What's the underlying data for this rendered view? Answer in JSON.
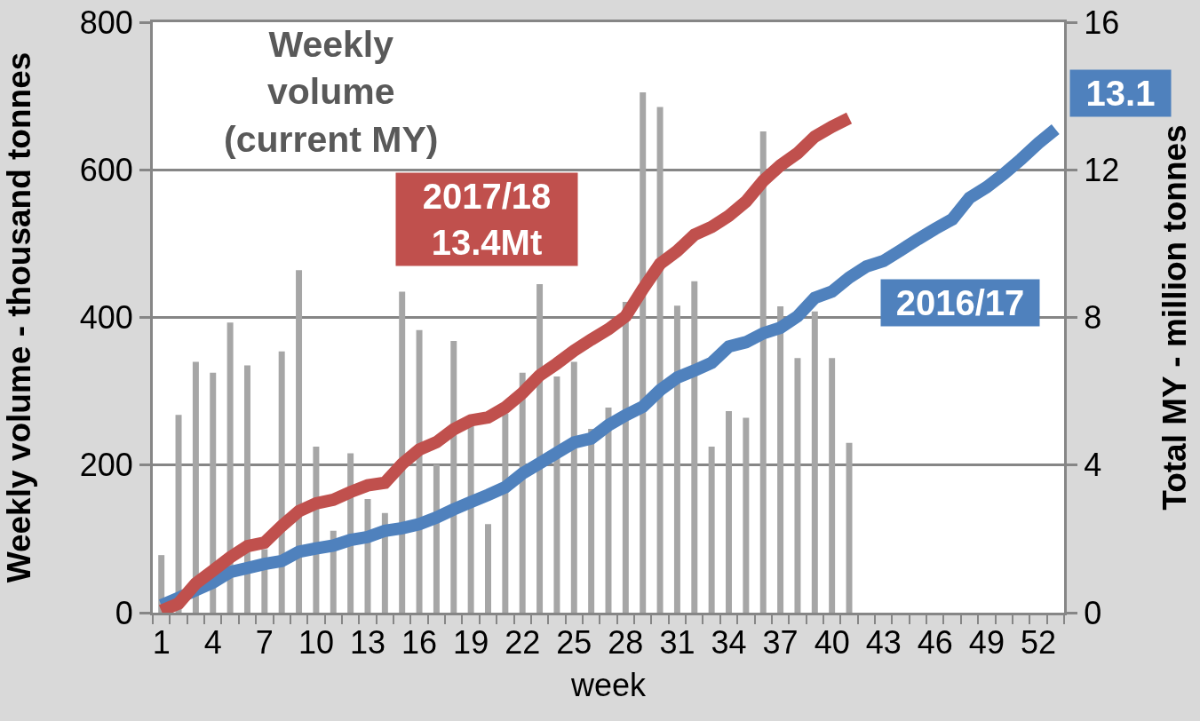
{
  "chart_data": {
    "type": "bar",
    "xlabel": "week",
    "ylabel": "Weekly volume - thousand tonnes",
    "y2label": "Total MY - million tonnes",
    "annotations": [
      "Weekly\nvolume\n(current MY)"
    ],
    "categories": [
      "1",
      null,
      null,
      "4",
      null,
      null,
      "7",
      null,
      null,
      "10",
      null,
      null,
      "13",
      null,
      null,
      "16",
      null,
      null,
      "19",
      null,
      null,
      "22",
      null,
      null,
      "25",
      null,
      null,
      "28",
      null,
      null,
      "31",
      null,
      null,
      "34",
      null,
      null,
      "37",
      null,
      null,
      "40",
      null,
      null,
      "43",
      null,
      null,
      "46",
      null,
      null,
      "49",
      null,
      null,
      "52",
      null
    ],
    "ylim": [
      0,
      800
    ],
    "yticks": [
      0,
      200,
      400,
      600,
      800
    ],
    "y2lim": [
      0,
      16
    ],
    "y2ticks": [
      0,
      4,
      8,
      12,
      16
    ],
    "grid": "y",
    "series": [
      {
        "color": "#a6a6a6",
        "values": [
          78,
          268,
          340,
          325,
          393,
          335,
          86,
          354,
          464,
          225,
          111,
          216,
          154,
          135,
          435,
          383,
          201,
          368,
          255,
          120,
          270,
          325,
          445,
          320,
          340,
          249,
          278,
          421,
          705,
          685,
          416,
          449,
          225,
          273,
          264,
          652,
          415,
          345,
          408,
          345,
          230,
          null,
          null,
          null,
          null,
          null,
          null,
          null,
          null,
          null,
          null,
          null,
          null
        ]
      },
      {
        "type": "line",
        "axis": "y2",
        "name": "2016/17",
        "color": "#4f81bd",
        "values": [
          0.2,
          0.4,
          0.61,
          0.82,
          1.1,
          1.21,
          1.32,
          1.4,
          1.65,
          1.74,
          1.82,
          1.97,
          2.05,
          2.22,
          2.29,
          2.4,
          2.58,
          2.8,
          3.0,
          3.19,
          3.4,
          3.77,
          4.05,
          4.33,
          4.61,
          4.72,
          5.08,
          5.35,
          5.58,
          6.03,
          6.37,
          6.56,
          6.77,
          7.21,
          7.33,
          7.57,
          7.72,
          8.03,
          8.53,
          8.7,
          9.08,
          9.38,
          9.53,
          9.82,
          10.12,
          10.4,
          10.66,
          11.24,
          11.53,
          11.89,
          12.29,
          12.72,
          13.1
        ],
        "value_labels": [
          null,
          null,
          null,
          null,
          null,
          null,
          null,
          null,
          null,
          null,
          null,
          null,
          null,
          null,
          null,
          null,
          null,
          null,
          null,
          null,
          null,
          null,
          null,
          null,
          null,
          null,
          null,
          null,
          null,
          null,
          null,
          null,
          null,
          null,
          null,
          null,
          null,
          null,
          null,
          null,
          null,
          null,
          null,
          null,
          null,
          null,
          null,
          null,
          null,
          null,
          null,
          null,
          "13.1"
        ]
      },
      {
        "type": "line",
        "axis": "y2",
        "name": "2017/18\n13.4Mt",
        "color": "#c0504d",
        "values": [
          0.05,
          0.25,
          0.79,
          1.14,
          1.5,
          1.8,
          1.9,
          2.35,
          2.75,
          2.96,
          3.06,
          3.27,
          3.45,
          3.52,
          4.03,
          4.42,
          4.62,
          4.97,
          5.21,
          5.29,
          5.56,
          5.95,
          6.43,
          6.75,
          7.1,
          7.4,
          7.68,
          8.03,
          8.77,
          9.45,
          9.8,
          10.24,
          10.45,
          10.75,
          11.14,
          11.7,
          12.12,
          12.45,
          12.9,
          13.17,
          13.4,
          null,
          null,
          null,
          null,
          null,
          null,
          null,
          null,
          null,
          null,
          null,
          null
        ]
      }
    ]
  }
}
